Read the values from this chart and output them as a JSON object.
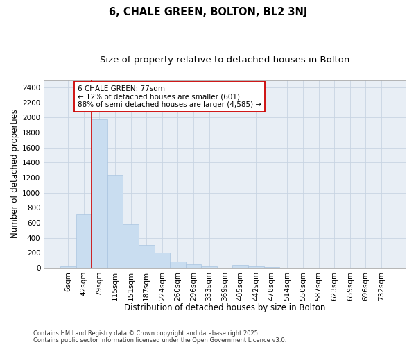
{
  "title1": "6, CHALE GREEN, BOLTON, BL2 3NJ",
  "title2": "Size of property relative to detached houses in Bolton",
  "xlabel": "Distribution of detached houses by size in Bolton",
  "ylabel": "Number of detached properties",
  "categories": [
    "6sqm",
    "42sqm",
    "79sqm",
    "115sqm",
    "151sqm",
    "187sqm",
    "224sqm",
    "260sqm",
    "296sqm",
    "333sqm",
    "369sqm",
    "405sqm",
    "442sqm",
    "478sqm",
    "514sqm",
    "550sqm",
    "587sqm",
    "623sqm",
    "659sqm",
    "696sqm",
    "732sqm"
  ],
  "values": [
    18,
    710,
    1970,
    1240,
    580,
    305,
    200,
    85,
    45,
    18,
    0,
    40,
    20,
    5,
    0,
    0,
    0,
    0,
    0,
    0,
    0
  ],
  "bar_color": "#c9ddf0",
  "bar_edge_color": "#aac4e0",
  "annotation_box_text": "6 CHALE GREEN: 77sqm\n← 12% of detached houses are smaller (601)\n88% of semi-detached houses are larger (4,585) →",
  "vline_color": "#cc0000",
  "box_edge_color": "#cc0000",
  "ylim_max": 2500,
  "yticks": [
    0,
    200,
    400,
    600,
    800,
    1000,
    1200,
    1400,
    1600,
    1800,
    2000,
    2200,
    2400
  ],
  "grid_color": "#c8d4e2",
  "bg_color": "#e8eef5",
  "footer": "Contains HM Land Registry data © Crown copyright and database right 2025.\nContains public sector information licensed under the Open Government Licence v3.0.",
  "title1_fontsize": 10.5,
  "title2_fontsize": 9.5,
  "xlabel_fontsize": 8.5,
  "ylabel_fontsize": 8.5,
  "tick_fontsize": 7.5,
  "annot_fontsize": 7.5,
  "footer_fontsize": 6
}
